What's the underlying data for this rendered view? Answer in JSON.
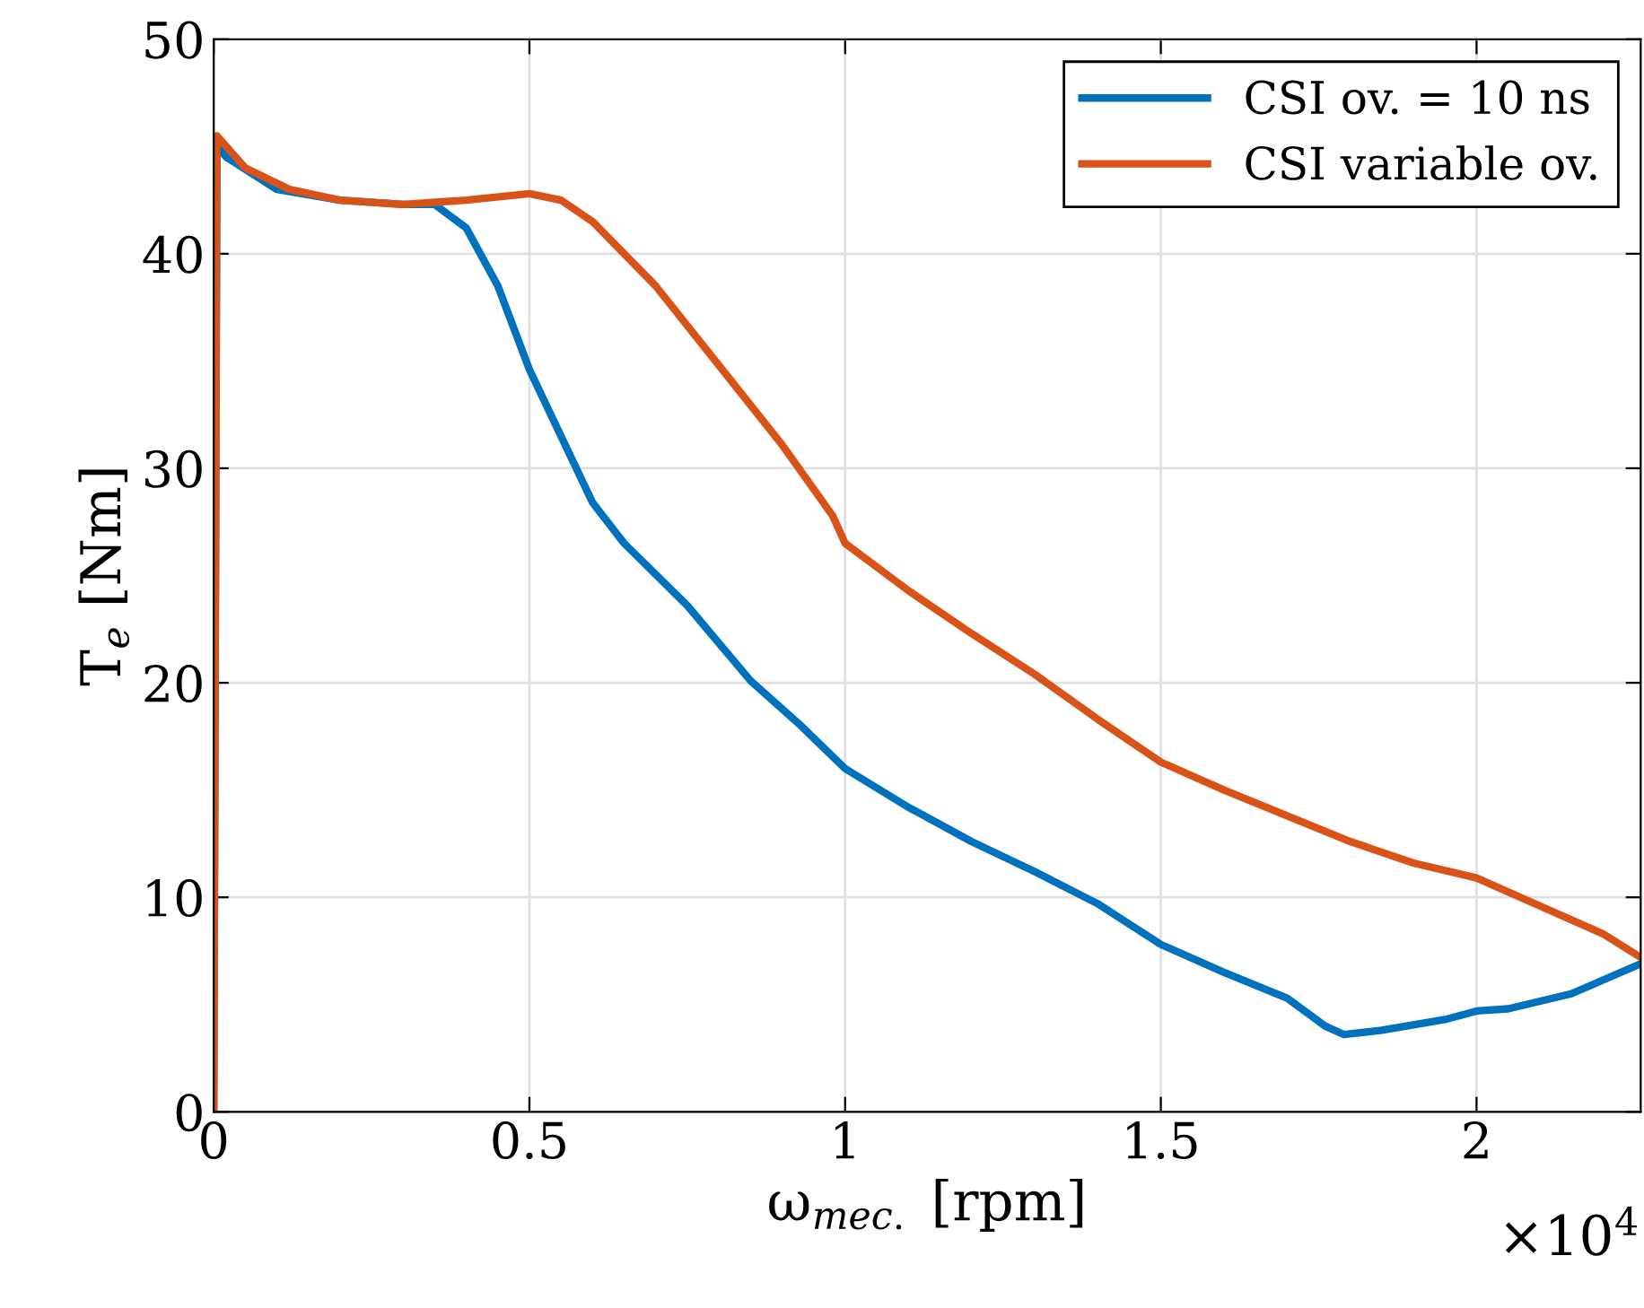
{
  "chart_data": {
    "type": "line",
    "xlabel": "ω$_{mec.}$ [rpm]",
    "ylabel": "T$_{e}$ [Nm]",
    "annotations": [
      "×10$^{4}$"
    ],
    "xlim": [
      0,
      2.26
    ],
    "xticks": [
      0,
      0.5,
      1,
      1.5,
      2
    ],
    "ylim": [
      0,
      50
    ],
    "yticks": [
      0,
      10,
      20,
      30,
      40,
      50
    ],
    "grid": true,
    "legend": "top right",
    "marker": "none",
    "line_style": "solid",
    "series": [
      {
        "name": "CSI ov. = 10 ns",
        "color": "#0072bd",
        "x": [
          0,
          0.005,
          0.02,
          0.1,
          0.2,
          0.3,
          0.35,
          0.4,
          0.45,
          0.5,
          0.6,
          0.65,
          0.75,
          0.85,
          0.93,
          1.0,
          1.1,
          1.2,
          1.3,
          1.4,
          1.5,
          1.6,
          1.7,
          1.76,
          1.79,
          1.85,
          1.95,
          2.0,
          2.05,
          2.15,
          2.26
        ],
        "values": [
          0,
          45,
          44.5,
          43,
          42.5,
          42.3,
          42.3,
          41.2,
          38.5,
          34.6,
          28.4,
          26.5,
          23.6,
          20.1,
          18,
          16,
          14.2,
          12.6,
          11.2,
          9.7,
          7.8,
          6.5,
          5.3,
          4,
          3.6,
          3.8,
          4.3,
          4.7,
          4.8,
          5.5,
          6.9
        ]
      },
      {
        "name": "CSI variable ov.",
        "color": "#d95319",
        "x": [
          0,
          0.005,
          0.05,
          0.12,
          0.2,
          0.3,
          0.4,
          0.5,
          0.55,
          0.6,
          0.7,
          0.8,
          0.9,
          0.98,
          1.0,
          1.1,
          1.2,
          1.3,
          1.4,
          1.5,
          1.6,
          1.7,
          1.8,
          1.9,
          2.0,
          2.1,
          2.2,
          2.26
        ],
        "values": [
          0,
          45.5,
          44,
          43,
          42.5,
          42.3,
          42.5,
          42.8,
          42.5,
          41.5,
          38.5,
          34.8,
          31.1,
          27.8,
          26.5,
          24.3,
          22.3,
          20.4,
          18.3,
          16.3,
          15,
          13.8,
          12.6,
          11.6,
          10.9,
          9.6,
          8.3,
          7.2
        ]
      }
    ]
  }
}
